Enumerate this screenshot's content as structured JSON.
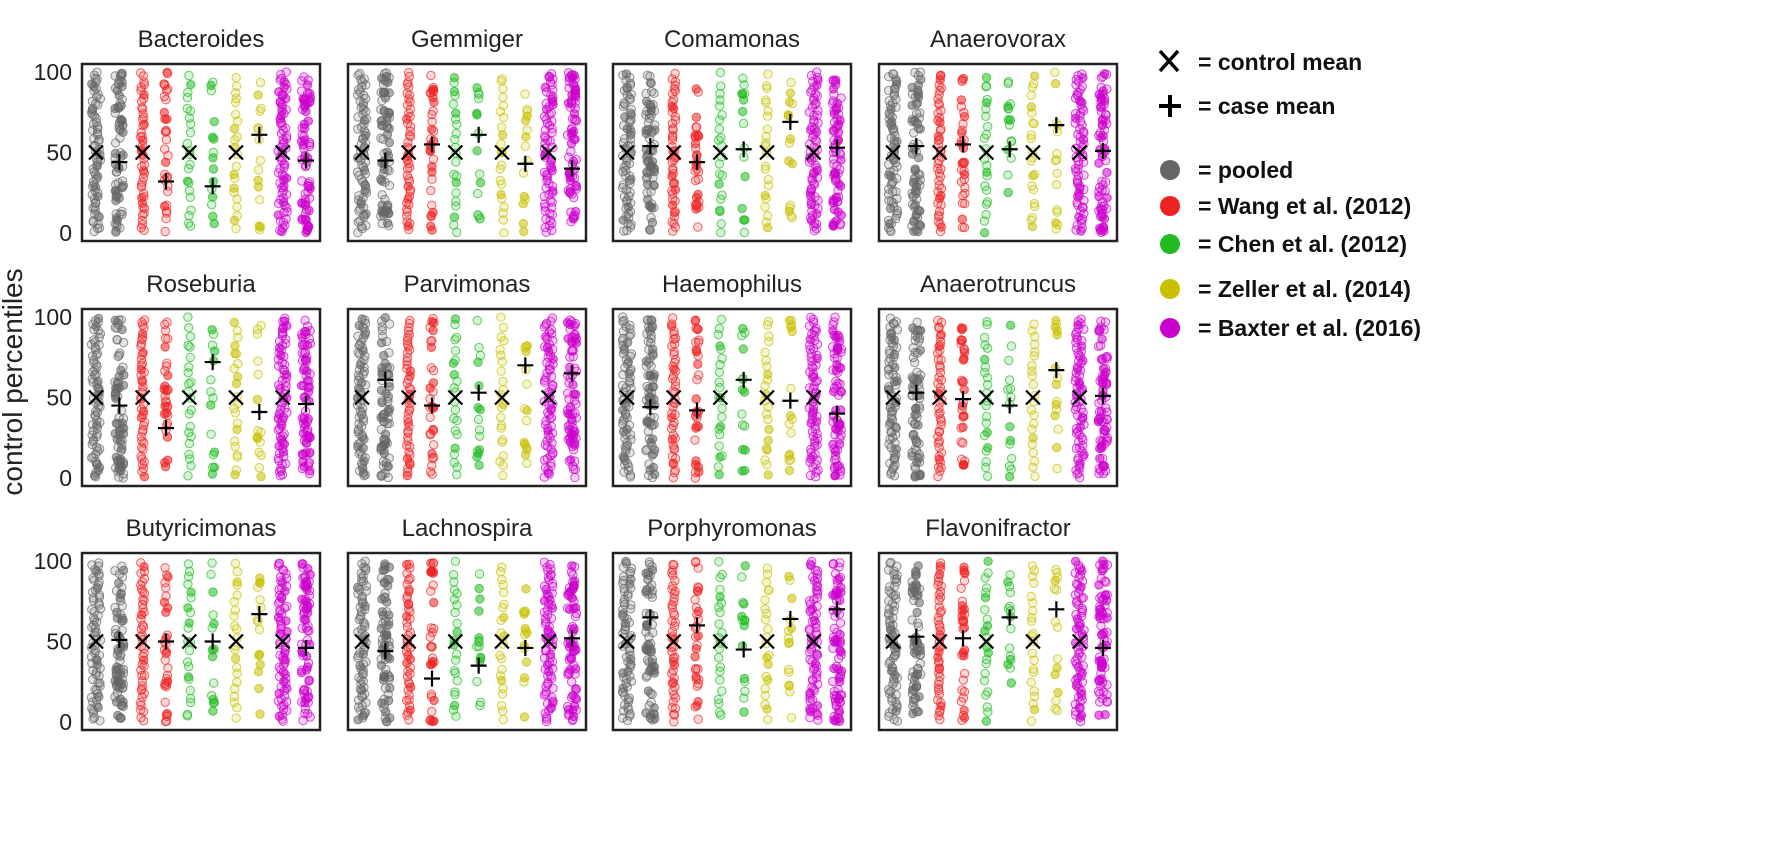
{
  "chart_data": {
    "type": "scatter",
    "ylabel": "control percentiles",
    "ylim": [
      0,
      100
    ],
    "yticks": [
      "0",
      "50",
      "100"
    ],
    "legend_placement": "right",
    "legend": {
      "markers": [
        {
          "symbol": "X",
          "label": "control mean"
        },
        {
          "symbol": "+",
          "label": "case mean"
        }
      ],
      "groups": [
        {
          "key": "pooled",
          "label": "pooled",
          "color": "#666666"
        },
        {
          "key": "wang",
          "label": "Wang et al. (2012)",
          "color": "#ee2222"
        },
        {
          "key": "chen",
          "label": "Chen et al. (2012)",
          "color": "#22bb22"
        },
        {
          "key": "zeller",
          "label": "Zeller et al. (2014)",
          "color": "#c8c000"
        },
        {
          "key": "baxter",
          "label": "Baxter et al. (2016)",
          "color": "#cc00cc"
        }
      ]
    },
    "column_order": [
      "pooled",
      "wang",
      "chen",
      "zeller",
      "baxter"
    ],
    "panels": [
      {
        "title": "Bacteroides",
        "means": {
          "pooled": [
            50,
            44
          ],
          "wang": [
            50,
            32
          ],
          "chen": [
            50,
            29
          ],
          "zeller": [
            50,
            61
          ],
          "baxter": [
            50,
            45
          ]
        }
      },
      {
        "title": "Gemmiger",
        "means": {
          "pooled": [
            50,
            45
          ],
          "wang": [
            50,
            55
          ],
          "chen": [
            50,
            61
          ],
          "zeller": [
            50,
            43
          ],
          "baxter": [
            50,
            40
          ]
        }
      },
      {
        "title": "Comamonas",
        "means": {
          "pooled": [
            50,
            54
          ],
          "wang": [
            50,
            44
          ],
          "chen": [
            50,
            52
          ],
          "zeller": [
            50,
            69
          ],
          "baxter": [
            50,
            53
          ]
        }
      },
      {
        "title": "Anaerovorax",
        "means": {
          "pooled": [
            50,
            54
          ],
          "wang": [
            50,
            55
          ],
          "chen": [
            50,
            52
          ],
          "zeller": [
            50,
            67
          ],
          "baxter": [
            50,
            51
          ]
        }
      },
      {
        "title": "Roseburia",
        "means": {
          "pooled": [
            50,
            45
          ],
          "wang": [
            50,
            31
          ],
          "chen": [
            50,
            72
          ],
          "zeller": [
            50,
            41
          ],
          "baxter": [
            50,
            46
          ]
        }
      },
      {
        "title": "Parvimonas",
        "means": {
          "pooled": [
            50,
            61
          ],
          "wang": [
            50,
            45
          ],
          "chen": [
            50,
            53
          ],
          "zeller": [
            50,
            70
          ],
          "baxter": [
            50,
            65
          ]
        }
      },
      {
        "title": "Haemophilus",
        "means": {
          "pooled": [
            50,
            44
          ],
          "wang": [
            50,
            42
          ],
          "chen": [
            50,
            61
          ],
          "zeller": [
            50,
            48
          ],
          "baxter": [
            50,
            40
          ]
        }
      },
      {
        "title": "Anaerotruncus",
        "means": {
          "pooled": [
            50,
            53
          ],
          "wang": [
            50,
            49
          ],
          "chen": [
            50,
            45
          ],
          "zeller": [
            50,
            67
          ],
          "baxter": [
            50,
            51
          ]
        }
      },
      {
        "title": "Butyricimonas",
        "means": {
          "pooled": [
            50,
            51
          ],
          "wang": [
            50,
            50
          ],
          "chen": [
            50,
            50
          ],
          "zeller": [
            50,
            67
          ],
          "baxter": [
            50,
            46
          ]
        }
      },
      {
        "title": "Lachnospira",
        "means": {
          "pooled": [
            50,
            44
          ],
          "wang": [
            50,
            27
          ],
          "chen": [
            50,
            35
          ],
          "zeller": [
            50,
            46
          ],
          "baxter": [
            50,
            52
          ]
        }
      },
      {
        "title": "Porphyromonas",
        "means": {
          "pooled": [
            50,
            65
          ],
          "wang": [
            50,
            60
          ],
          "chen": [
            50,
            45
          ],
          "zeller": [
            50,
            64
          ],
          "baxter": [
            50,
            70
          ]
        }
      },
      {
        "title": "Flavonifractor",
        "means": {
          "pooled": [
            50,
            53
          ],
          "wang": [
            50,
            52
          ],
          "chen": [
            50,
            65
          ],
          "zeller": [
            50,
            70
          ],
          "baxter": [
            50,
            46
          ]
        }
      }
    ]
  }
}
